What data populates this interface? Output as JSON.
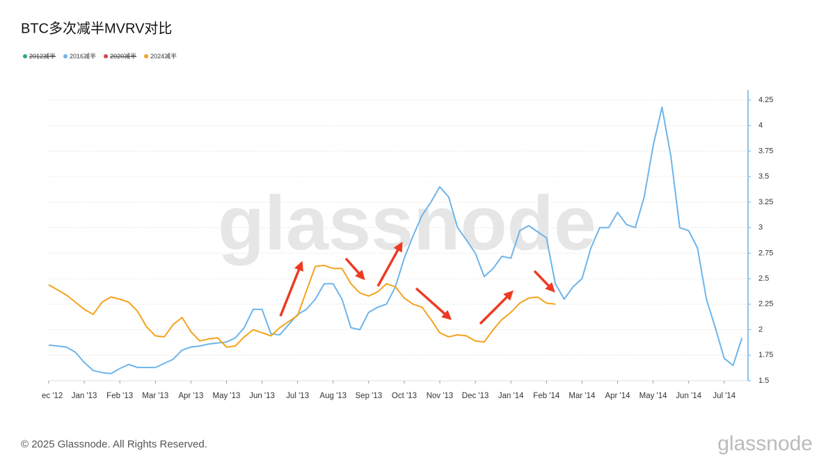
{
  "chart_data": {
    "type": "line",
    "title": "BTC多次减半MVRV对比",
    "watermark": "glassnode",
    "footer": "© 2025 Glassnode. All Rights Reserved.",
    "logo": "glassnode",
    "hidden_series": [
      {
        "name": "2012减半",
        "color": "#2ca58d"
      },
      {
        "name": "2020减半",
        "color": "#d9434e"
      }
    ],
    "x": [
      0,
      0.25,
      0.5,
      0.75,
      1,
      1.25,
      1.5,
      1.75,
      2,
      2.25,
      2.5,
      2.75,
      3,
      3.25,
      3.5,
      3.75,
      4,
      4.25,
      4.5,
      4.75,
      5,
      5.25,
      5.5,
      5.75,
      6,
      6.25,
      6.5,
      6.75,
      7,
      7.25,
      7.5,
      7.75,
      8,
      8.25,
      8.5,
      8.75,
      9,
      9.25,
      9.5,
      9.75,
      10,
      10.25,
      10.5,
      10.75,
      11,
      11.25,
      11.5,
      11.75,
      12,
      12.25,
      12.5,
      12.75,
      13,
      13.25,
      13.5,
      13.75,
      14,
      14.25,
      14.5,
      14.75,
      15,
      15.25,
      15.5,
      15.75,
      16,
      16.25,
      16.5,
      16.75,
      17,
      17.25,
      17.5,
      17.75,
      18,
      18.25,
      18.5,
      18.75,
      19,
      19.25,
      19.5
    ],
    "series": [
      {
        "name": "2016减半",
        "color": "#6cb4ea",
        "values": [
          1.85,
          1.84,
          1.83,
          1.78,
          1.68,
          1.6,
          1.58,
          1.57,
          1.62,
          1.66,
          1.63,
          1.63,
          1.63,
          1.67,
          1.71,
          1.8,
          1.83,
          1.84,
          1.86,
          1.87,
          1.88,
          1.92,
          2.02,
          2.2,
          2.2,
          1.96,
          1.95,
          2.05,
          2.15,
          2.2,
          2.3,
          2.45,
          2.45,
          2.3,
          2.02,
          2.0,
          2.17,
          2.22,
          2.25,
          2.42,
          2.7,
          2.92,
          3.12,
          3.25,
          3.4,
          3.3,
          3.0,
          2.88,
          2.75,
          2.52,
          2.6,
          2.72,
          2.7,
          2.97,
          3.02,
          2.96,
          2.9,
          2.45,
          2.3,
          2.42,
          2.5,
          2.8,
          3.0,
          3.0,
          3.15,
          3.03,
          3.0,
          3.3,
          3.8,
          4.18,
          3.7,
          3.0,
          2.97,
          2.8,
          2.3,
          2.02,
          1.72,
          1.65,
          1.92
        ]
      },
      {
        "name": "2024减半",
        "color": "#f3a21b",
        "values": [
          2.44,
          2.39,
          2.34,
          2.27,
          2.2,
          2.15,
          2.27,
          2.32,
          2.3,
          2.27,
          2.18,
          2.03,
          1.94,
          1.93,
          2.05,
          2.12,
          1.98,
          1.89,
          1.91,
          1.92,
          1.83,
          1.84,
          1.93,
          2.0,
          1.97,
          1.94,
          2.02,
          2.08,
          2.14,
          2.38,
          2.62,
          2.63,
          2.6,
          2.6,
          2.45,
          2.36,
          2.33,
          2.37,
          2.45,
          2.42,
          2.31,
          2.25,
          2.22,
          2.1,
          1.97,
          1.93,
          1.95,
          1.94,
          1.89,
          1.88,
          2.0,
          2.1,
          2.17,
          2.26,
          2.31,
          2.32,
          2.26,
          2.25,
          null,
          null,
          null,
          null,
          null,
          null,
          null,
          null,
          null,
          null,
          null,
          null,
          null,
          null,
          null,
          null,
          null,
          null,
          null,
          null,
          null
        ]
      }
    ],
    "xlim": [
      0,
      19.67
    ],
    "xticks": [
      {
        "value": 0,
        "label": "ec '12"
      },
      {
        "value": 1,
        "label": "Jan '13"
      },
      {
        "value": 2,
        "label": "Feb '13"
      },
      {
        "value": 3,
        "label": "Mar '13"
      },
      {
        "value": 4,
        "label": "Apr '13"
      },
      {
        "value": 5,
        "label": "May '13"
      },
      {
        "value": 6,
        "label": "Jun '13"
      },
      {
        "value": 7,
        "label": "Jul '13"
      },
      {
        "value": 8,
        "label": "Aug '13"
      },
      {
        "value": 9,
        "label": "Sep '13"
      },
      {
        "value": 10,
        "label": "Oct '13"
      },
      {
        "value": 11,
        "label": "Nov '13"
      },
      {
        "value": 12,
        "label": "Dec '13"
      },
      {
        "value": 13,
        "label": "Jan '14"
      },
      {
        "value": 14,
        "label": "Feb '14"
      },
      {
        "value": 15,
        "label": "Mar '14"
      },
      {
        "value": 16,
        "label": "Apr '14"
      },
      {
        "value": 17,
        "label": "May '14"
      },
      {
        "value": 18,
        "label": "Jun '14"
      },
      {
        "value": 19,
        "label": "Jul '14"
      }
    ],
    "ylim": [
      1.5,
      4.3
    ],
    "yticks": [
      1.5,
      1.75,
      2,
      2.25,
      2.5,
      2.75,
      3,
      3.25,
      3.5,
      3.75,
      4,
      4.25
    ],
    "grid": true
  }
}
